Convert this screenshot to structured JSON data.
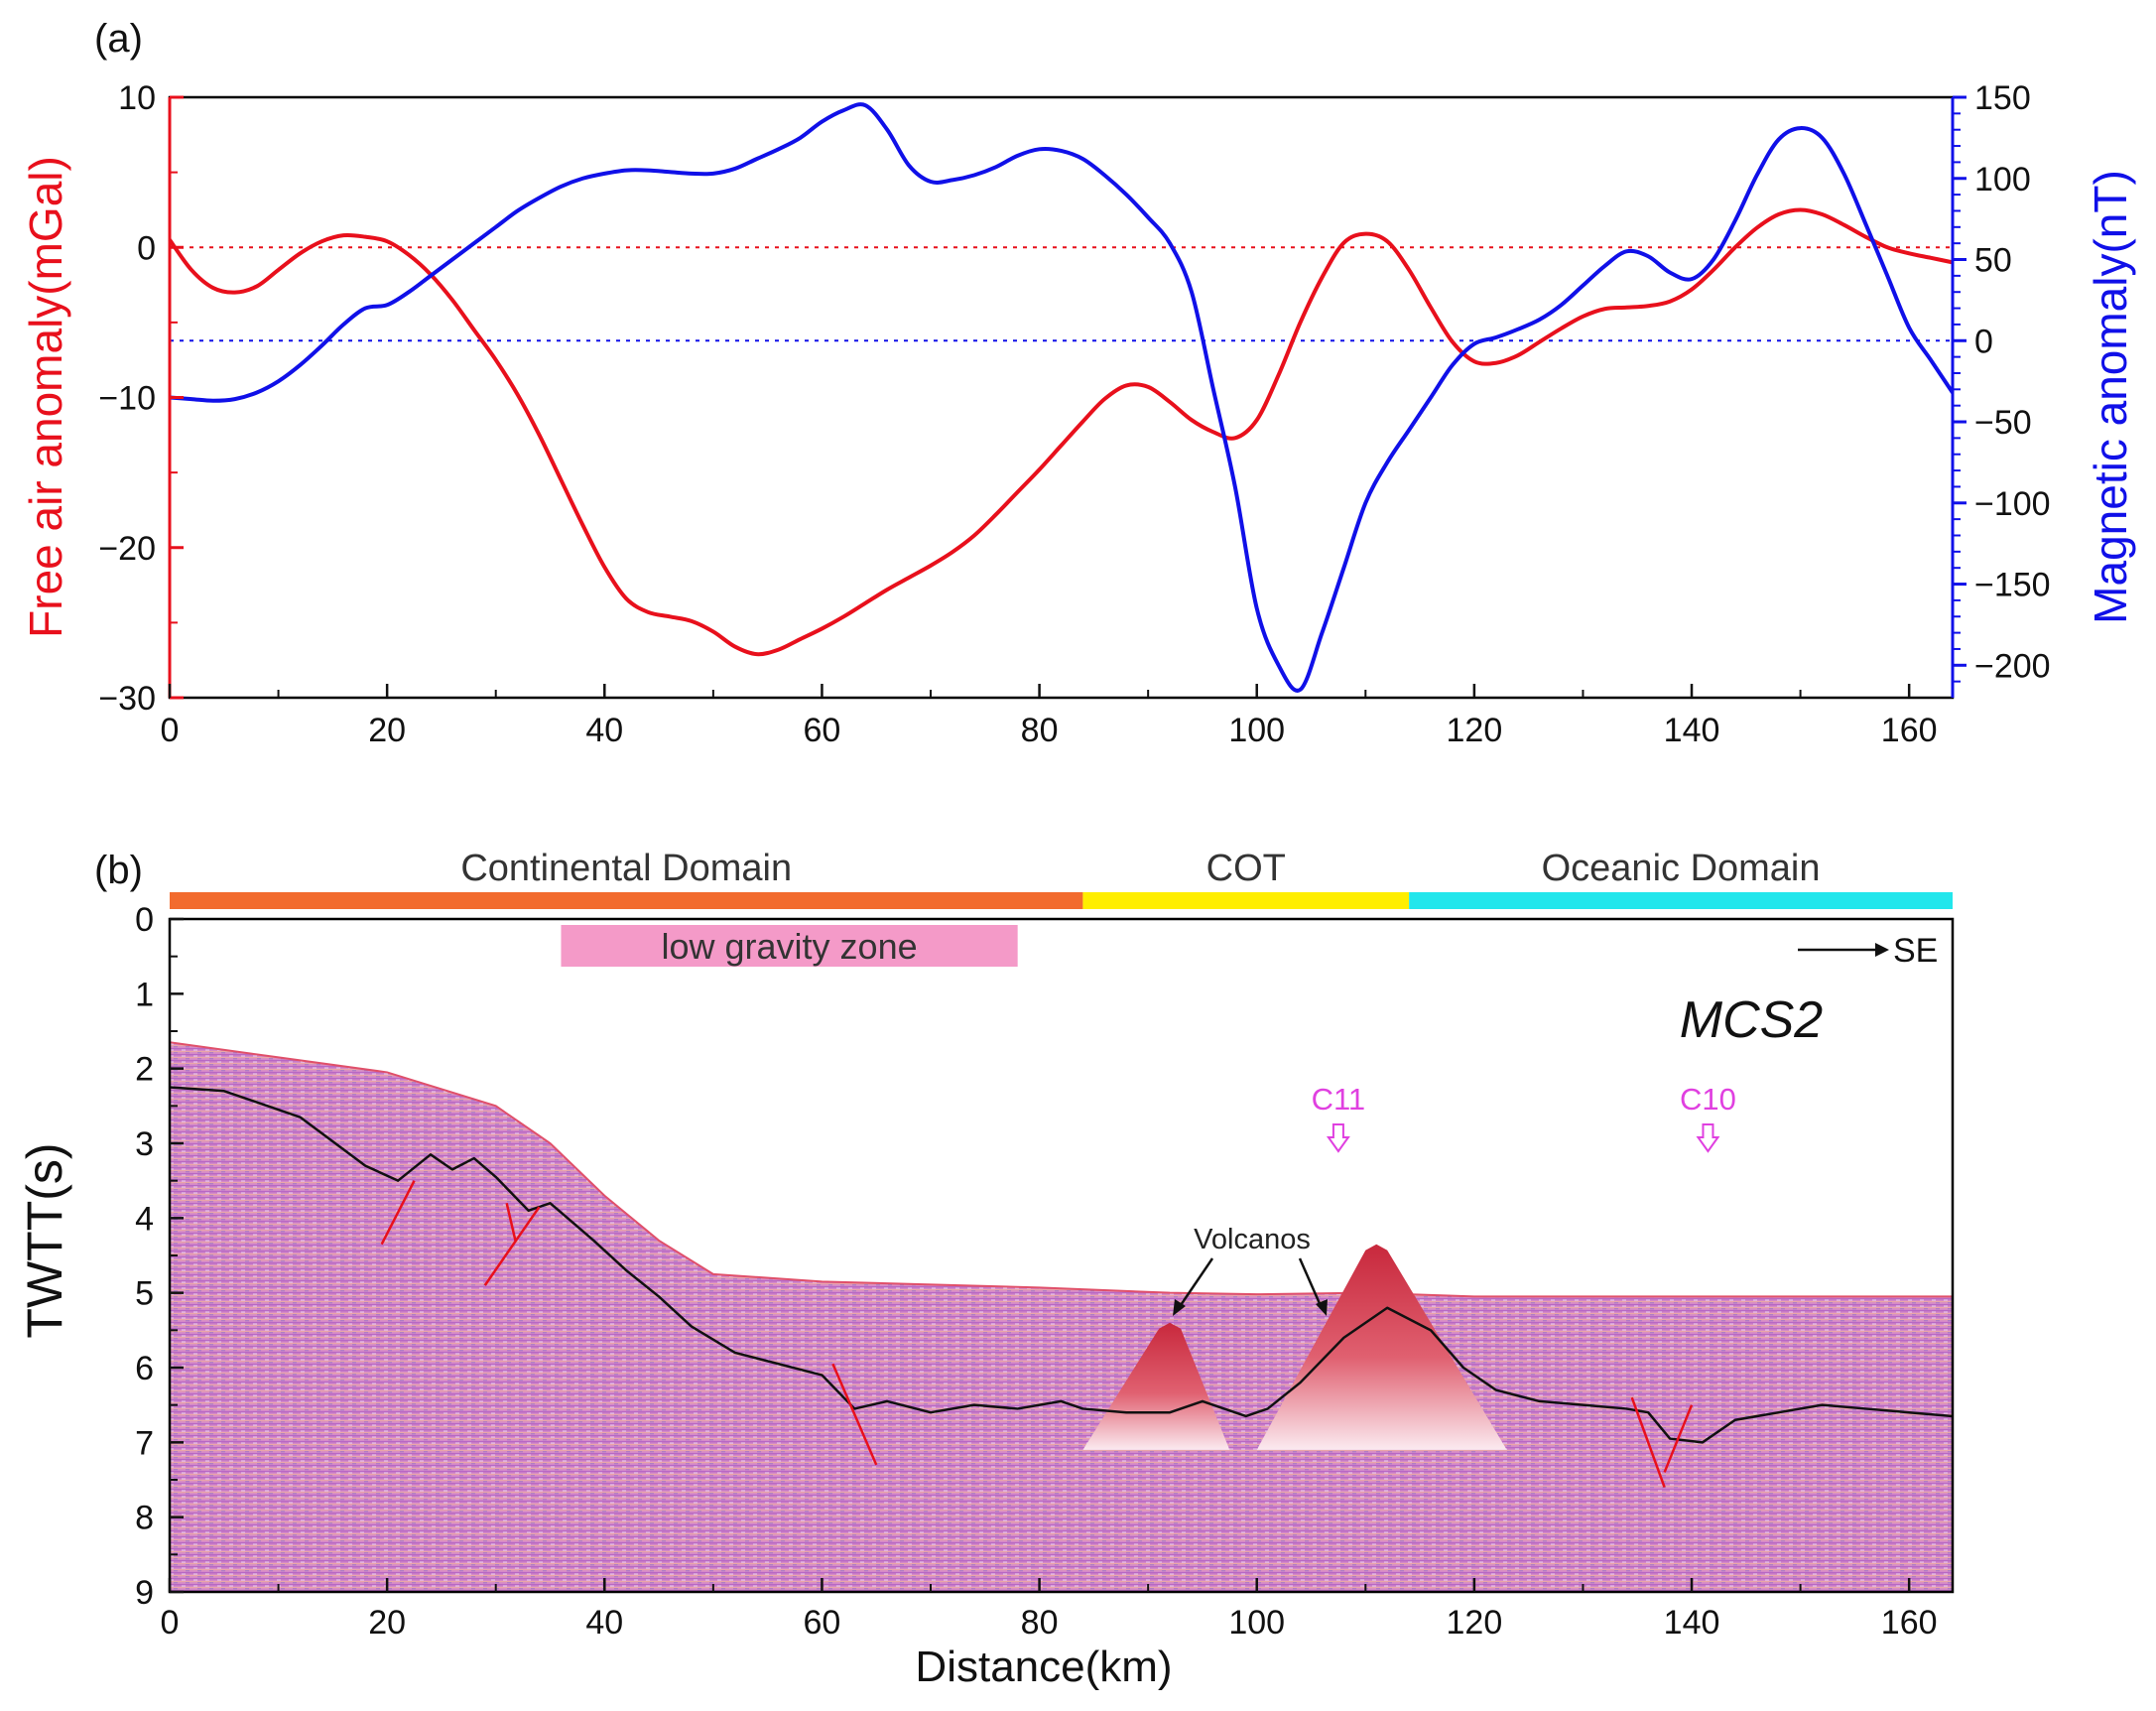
{
  "chart_data": [
    {
      "panel_label": "(a)",
      "type": "line",
      "x": [
        0,
        2,
        4,
        6,
        8,
        10,
        12,
        14,
        16,
        18,
        20,
        22,
        24,
        26,
        28,
        30,
        32,
        34,
        36,
        38,
        40,
        42,
        44,
        46,
        48,
        50,
        52,
        54,
        56,
        58,
        60,
        62,
        64,
        66,
        68,
        70,
        72,
        74,
        76,
        78,
        80,
        82,
        84,
        86,
        88,
        90,
        92,
        94,
        96,
        98,
        100,
        102,
        104,
        106,
        108,
        110,
        112,
        114,
        116,
        118,
        120,
        122,
        124,
        126,
        128,
        130,
        132,
        134,
        136,
        138,
        140,
        142,
        144,
        146,
        148,
        150,
        152,
        154,
        156,
        158,
        160,
        162,
        164
      ],
      "xlim": [
        0,
        164
      ],
      "xticks": [
        "0",
        "20",
        "40",
        "60",
        "80",
        "100",
        "120",
        "140",
        "160"
      ],
      "left_axis": {
        "label": "Free air anomaly(mGal)",
        "color": "#e8101c",
        "ylim": [
          -30,
          10
        ],
        "ticks": [
          "10",
          "0",
          "−10",
          "−20",
          "−30"
        ],
        "tick_values": [
          10,
          0,
          -10,
          -20,
          -30
        ],
        "reference_line": 0
      },
      "right_axis": {
        "label": "Magnetic anomaly(nT)",
        "color": "#1010e8",
        "ylim": [
          -220,
          150
        ],
        "ticks": [
          "150",
          "100",
          "50",
          "0",
          "−50",
          "−100",
          "−150",
          "−200"
        ],
        "tick_values": [
          150,
          100,
          50,
          0,
          -50,
          -100,
          -150,
          -200
        ],
        "reference_line": 0
      },
      "series": [
        {
          "axis": "left",
          "color": "#e8101c",
          "values": [
            0.5,
            -1.5,
            -2.7,
            -3,
            -2.6,
            -1.5,
            -0.4,
            0.4,
            0.8,
            0.7,
            0.4,
            -0.5,
            -1.8,
            -3.5,
            -5.5,
            -7.5,
            -9.8,
            -12.5,
            -15.5,
            -18.5,
            -21.3,
            -23.4,
            -24.3,
            -24.6,
            -24.9,
            -25.6,
            -26.6,
            -27.1,
            -26.8,
            -26.1,
            -25.4,
            -24.6,
            -23.7,
            -22.8,
            -22,
            -21.2,
            -20.3,
            -19.2,
            -17.8,
            -16.3,
            -14.8,
            -13.2,
            -11.6,
            -10.1,
            -9.2,
            -9.3,
            -10.3,
            -11.5,
            -12.3,
            -12.7,
            -11.5,
            -8.5,
            -5,
            -2,
            0.3,
            0.9,
            0.4,
            -1.5,
            -4,
            -6.3,
            -7.6,
            -7.7,
            -7.2,
            -6.3,
            -5.4,
            -4.6,
            -4.1,
            -4,
            -3.9,
            -3.6,
            -2.8,
            -1.5,
            0,
            1.3,
            2.2,
            2.5,
            2.2,
            1.5,
            0.7,
            0,
            -0.4,
            -0.7,
            -1
          ]
        },
        {
          "axis": "right",
          "color": "#1010e8",
          "values": [
            -35,
            -36,
            -37,
            -36,
            -32,
            -25,
            -15,
            -3,
            10,
            20,
            22,
            30,
            40,
            50,
            60,
            70,
            80,
            88,
            95,
            100,
            103,
            105,
            105,
            104,
            103,
            103,
            106,
            112,
            118,
            125,
            135,
            142,
            145,
            130,
            108,
            98,
            99,
            102,
            107,
            114,
            118,
            117,
            112,
            102,
            90,
            76,
            60,
            30,
            -30,
            -90,
            -165,
            -200,
            -215,
            -180,
            -140,
            -100,
            -75,
            -55,
            -35,
            -15,
            -2,
            2,
            7,
            13,
            22,
            34,
            46,
            55,
            52,
            42,
            38,
            50,
            74,
            102,
            124,
            131,
            125,
            103,
            72,
            40,
            8,
            -12,
            -32
          ]
        }
      ]
    },
    {
      "panel_label": "(b)",
      "type": "area",
      "title": "MCS2",
      "xlabel": "Distance(km)",
      "ylabel": "TWTT(s)",
      "xlim": [
        0,
        164
      ],
      "ylim": [
        9,
        0
      ],
      "xticks": [
        "0",
        "20",
        "40",
        "60",
        "80",
        "100",
        "120",
        "140",
        "160"
      ],
      "yticks": [
        "0",
        "1",
        "2",
        "3",
        "4",
        "5",
        "6",
        "7",
        "8",
        "9"
      ],
      "domains": [
        {
          "label": "Continental Domain",
          "from": 0,
          "to": 84,
          "color": "#f26b2e"
        },
        {
          "label": "COT",
          "from": 84,
          "to": 114,
          "color": "#ffee00"
        },
        {
          "label": "Oceanic Domain",
          "from": 114,
          "to": 164,
          "color": "#22e6ec"
        }
      ],
      "low_gravity_zone": {
        "label": "low gravity zone",
        "from": 36,
        "to": 78,
        "color": "#f49ac8"
      },
      "direction_label": "SE",
      "annotation_volcanos": "Volcanos",
      "magnetic_markers": [
        {
          "label": "C11",
          "x": 107.5,
          "color": "#e040e0"
        },
        {
          "label": "C10",
          "x": 141.5,
          "color": "#e040e0"
        }
      ],
      "seafloor": {
        "x": [
          0,
          10,
          20,
          30,
          35,
          40,
          45,
          50,
          60,
          80,
          92,
          100,
          110,
          120,
          140,
          164
        ],
        "twtt": [
          1.65,
          1.85,
          2.05,
          2.5,
          3.0,
          3.7,
          4.3,
          4.75,
          4.85,
          4.93,
          5.0,
          5.02,
          5.0,
          5.05,
          5.05,
          5.05
        ]
      },
      "basement": {
        "x": [
          0,
          5,
          12,
          18,
          21,
          24,
          26,
          28,
          30,
          32,
          33,
          35,
          37,
          39,
          42,
          45,
          48,
          52,
          56,
          60,
          63,
          66,
          70,
          74,
          78,
          82,
          84,
          88,
          92,
          95,
          99,
          101,
          104,
          108,
          112,
          116,
          119,
          122,
          126,
          130,
          134,
          136,
          138,
          141,
          144,
          148,
          152,
          156,
          160,
          164
        ],
        "twtt": [
          2.25,
          2.3,
          2.65,
          3.3,
          3.5,
          3.15,
          3.35,
          3.2,
          3.45,
          3.75,
          3.9,
          3.8,
          4.05,
          4.3,
          4.7,
          5.05,
          5.45,
          5.8,
          5.95,
          6.1,
          6.55,
          6.45,
          6.6,
          6.5,
          6.55,
          6.45,
          6.55,
          6.6,
          6.6,
          6.45,
          6.65,
          6.55,
          6.2,
          5.6,
          5.2,
          5.5,
          6.0,
          6.3,
          6.45,
          6.5,
          6.55,
          6.6,
          6.95,
          7.0,
          6.7,
          6.6,
          6.5,
          6.55,
          6.6,
          6.65
        ]
      },
      "volcanoes": [
        {
          "base_from": 84,
          "base_to": 97.5,
          "peak_x": 92,
          "peak_twtt": 5.4,
          "base_twtt": 7.1
        },
        {
          "base_from": 100,
          "base_to": 123,
          "peak_x": 111,
          "peak_twtt": 4.35,
          "base_twtt": 7.1
        }
      ],
      "faults": [
        {
          "x1": 19.5,
          "y1": 4.35,
          "x2": 22.5,
          "y2": 3.5
        },
        {
          "x1": 29,
          "y1": 4.9,
          "x2": 34,
          "y2": 3.85
        },
        {
          "x1": 31,
          "y1": 3.8,
          "x2": 31.8,
          "y2": 4.3
        },
        {
          "x1": 61,
          "y1": 5.95,
          "x2": 65,
          "y2": 7.3
        },
        {
          "x1": 134.5,
          "y1": 6.4,
          "x2": 137.5,
          "y2": 7.6
        },
        {
          "x1": 137.5,
          "y1": 7.4,
          "x2": 140,
          "y2": 6.5
        }
      ]
    }
  ]
}
